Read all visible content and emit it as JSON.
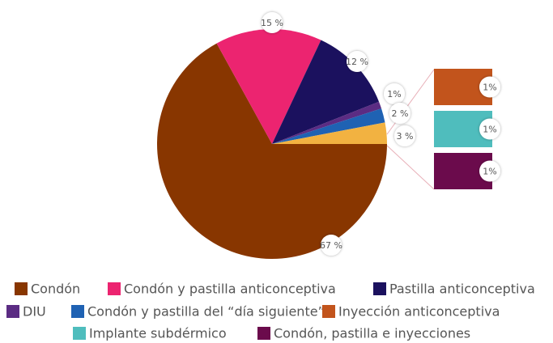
{
  "chart_data": {
    "type": "pie",
    "categories": [
      "Condón",
      "Condón y pastilla anticonceptiva",
      "Pastilla anticonceptiva",
      "DIU",
      "Condón y pastilla del “día siguiente”",
      null
    ],
    "values": [
      67,
      15,
      12,
      1,
      2,
      3
    ],
    "value_labels": [
      "67 %",
      "15 %",
      "12 %",
      "1%",
      "2 %",
      "3 %"
    ],
    "colors": [
      "#883600",
      "#ec2470",
      "#1b115e",
      "#5b2c83",
      "#1f62b3",
      "#f2b241"
    ],
    "breakdown": {
      "type": "bar",
      "categories": [
        "Inyección anticonceptiva",
        "Implante subdérmico",
        "Condón, pastilla e inyecciones"
      ],
      "values": [
        1,
        1,
        1
      ],
      "value_labels": [
        "1%",
        "1%",
        "1%"
      ],
      "colors": [
        "#c2541c",
        "#4fbdbd",
        "#6b0b4c"
      ]
    }
  }
}
